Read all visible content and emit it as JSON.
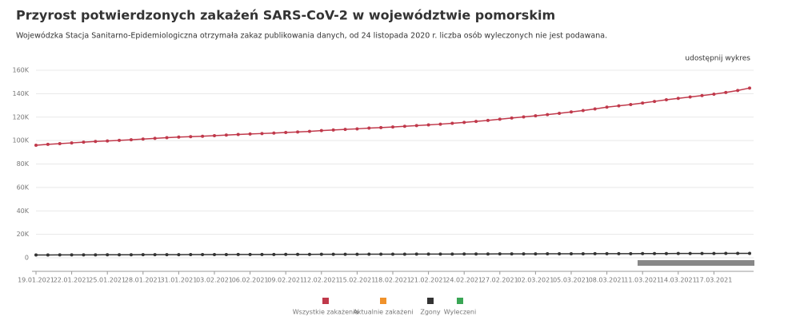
{
  "chart_data": {
    "type": "line",
    "title": "Przyrost potwierdzonych zakażeń SARS-CoV-2 w województwie pomorskim",
    "subtitle": "Wojewódzka Stacja Sanitarno-Epidemiologiczna otrzymała zakaz publikowania danych, od 24 listopada 2020 r. liczba osób wyleczonych nie jest podawana.",
    "share_link": "udostępnij wykres",
    "categories": [
      "19.01.2021",
      null,
      null,
      "22.01.2021",
      null,
      null,
      "25.01.2021",
      null,
      null,
      "28.01.2021",
      null,
      null,
      "31.01.2021",
      null,
      null,
      "03.02.2021",
      null,
      null,
      "06.02.2021",
      null,
      null,
      "09.02.2021",
      null,
      null,
      "12.02.2021",
      null,
      null,
      "15.02.2021",
      null,
      null,
      "18.02.2021",
      null,
      null,
      "21.02.2021",
      null,
      null,
      "24.02.2021",
      null,
      null,
      "27.02.2021",
      null,
      null,
      "02.03.2021",
      null,
      null,
      "05.03.2021",
      null,
      null,
      "08.03.2021",
      null,
      null,
      "11.03.2021",
      null,
      null,
      "14.03.2021",
      null,
      null,
      "17.03.2021",
      null,
      null,
      null
    ],
    "series": [
      {
        "name": "Wszystkie zakażenia",
        "color": "#c0394b",
        "values": [
          96000,
          96800,
          97400,
          98000,
          98600,
          99200,
          99700,
          100200,
          100700,
          101300,
          101900,
          102500,
          103000,
          103300,
          103700,
          104200,
          104700,
          105200,
          105600,
          106000,
          106400,
          106900,
          107300,
          107800,
          108500,
          109000,
          109500,
          110000,
          110600,
          111100,
          111600,
          112200,
          112800,
          113400,
          114000,
          114700,
          115500,
          116300,
          117200,
          118200,
          119200,
          120200,
          121100,
          122100,
          123200,
          124400,
          125600,
          127000,
          128500,
          129600,
          130700,
          132000,
          133400,
          134800,
          136000,
          137200,
          138400,
          139600,
          141000,
          142700,
          144800
        ]
      },
      {
        "name": "Aktualnie zakażeni",
        "color": "#f0922b",
        "values": [
          null,
          null,
          null,
          null,
          null,
          null,
          null,
          null,
          null,
          null,
          null,
          null,
          null,
          null,
          null,
          null,
          null,
          null,
          null,
          null,
          null,
          null,
          null,
          null,
          null,
          null,
          null,
          null,
          null,
          null,
          null,
          null,
          null,
          null,
          null,
          null,
          null,
          null,
          null,
          null,
          null,
          null,
          null,
          null,
          null,
          null,
          null,
          null,
          null,
          null,
          null,
          null,
          null,
          null,
          null,
          null,
          null,
          null,
          null,
          null,
          null
        ]
      },
      {
        "name": "Zgony",
        "color": "#333333",
        "values": [
          2400,
          2420,
          2450,
          2470,
          2490,
          2510,
          2540,
          2560,
          2580,
          2600,
          2630,
          2650,
          2670,
          2690,
          2720,
          2740,
          2760,
          2780,
          2810,
          2830,
          2850,
          2870,
          2900,
          2920,
          2940,
          2960,
          2990,
          3010,
          3030,
          3050,
          3080,
          3100,
          3120,
          3140,
          3170,
          3190,
          3210,
          3230,
          3260,
          3280,
          3300,
          3320,
          3350,
          3370,
          3390,
          3410,
          3440,
          3460,
          3480,
          3500,
          3530,
          3550,
          3570,
          3590,
          3620,
          3640,
          3660,
          3680,
          3710,
          3730,
          3750
        ]
      },
      {
        "name": "Wyleczeni",
        "color": "#3aa655",
        "values": [
          null,
          null,
          null,
          null,
          null,
          null,
          null,
          null,
          null,
          null,
          null,
          null,
          null,
          null,
          null,
          null,
          null,
          null,
          null,
          null,
          null,
          null,
          null,
          null,
          null,
          null,
          null,
          null,
          null,
          null,
          null,
          null,
          null,
          null,
          null,
          null,
          null,
          null,
          null,
          null,
          null,
          null,
          null,
          null,
          null,
          null,
          null,
          null,
          null,
          null,
          null,
          null,
          null,
          null,
          null,
          null,
          null,
          null,
          null,
          null,
          null
        ]
      }
    ],
    "ylim": [
      0,
      160000
    ],
    "yticks": [
      0,
      {
        "value": 20000,
        "label": "20K"
      },
      {
        "value": 40000,
        "label": "40K"
      },
      {
        "value": 60000,
        "label": "60K"
      },
      {
        "value": 80000,
        "label": "80K"
      },
      {
        "value": 100000,
        "label": "100K"
      },
      {
        "value": 120000,
        "label": "120K"
      },
      {
        "value": 140000,
        "label": "140K"
      },
      {
        "value": 160000,
        "label": "160K"
      }
    ],
    "grid": true
  }
}
